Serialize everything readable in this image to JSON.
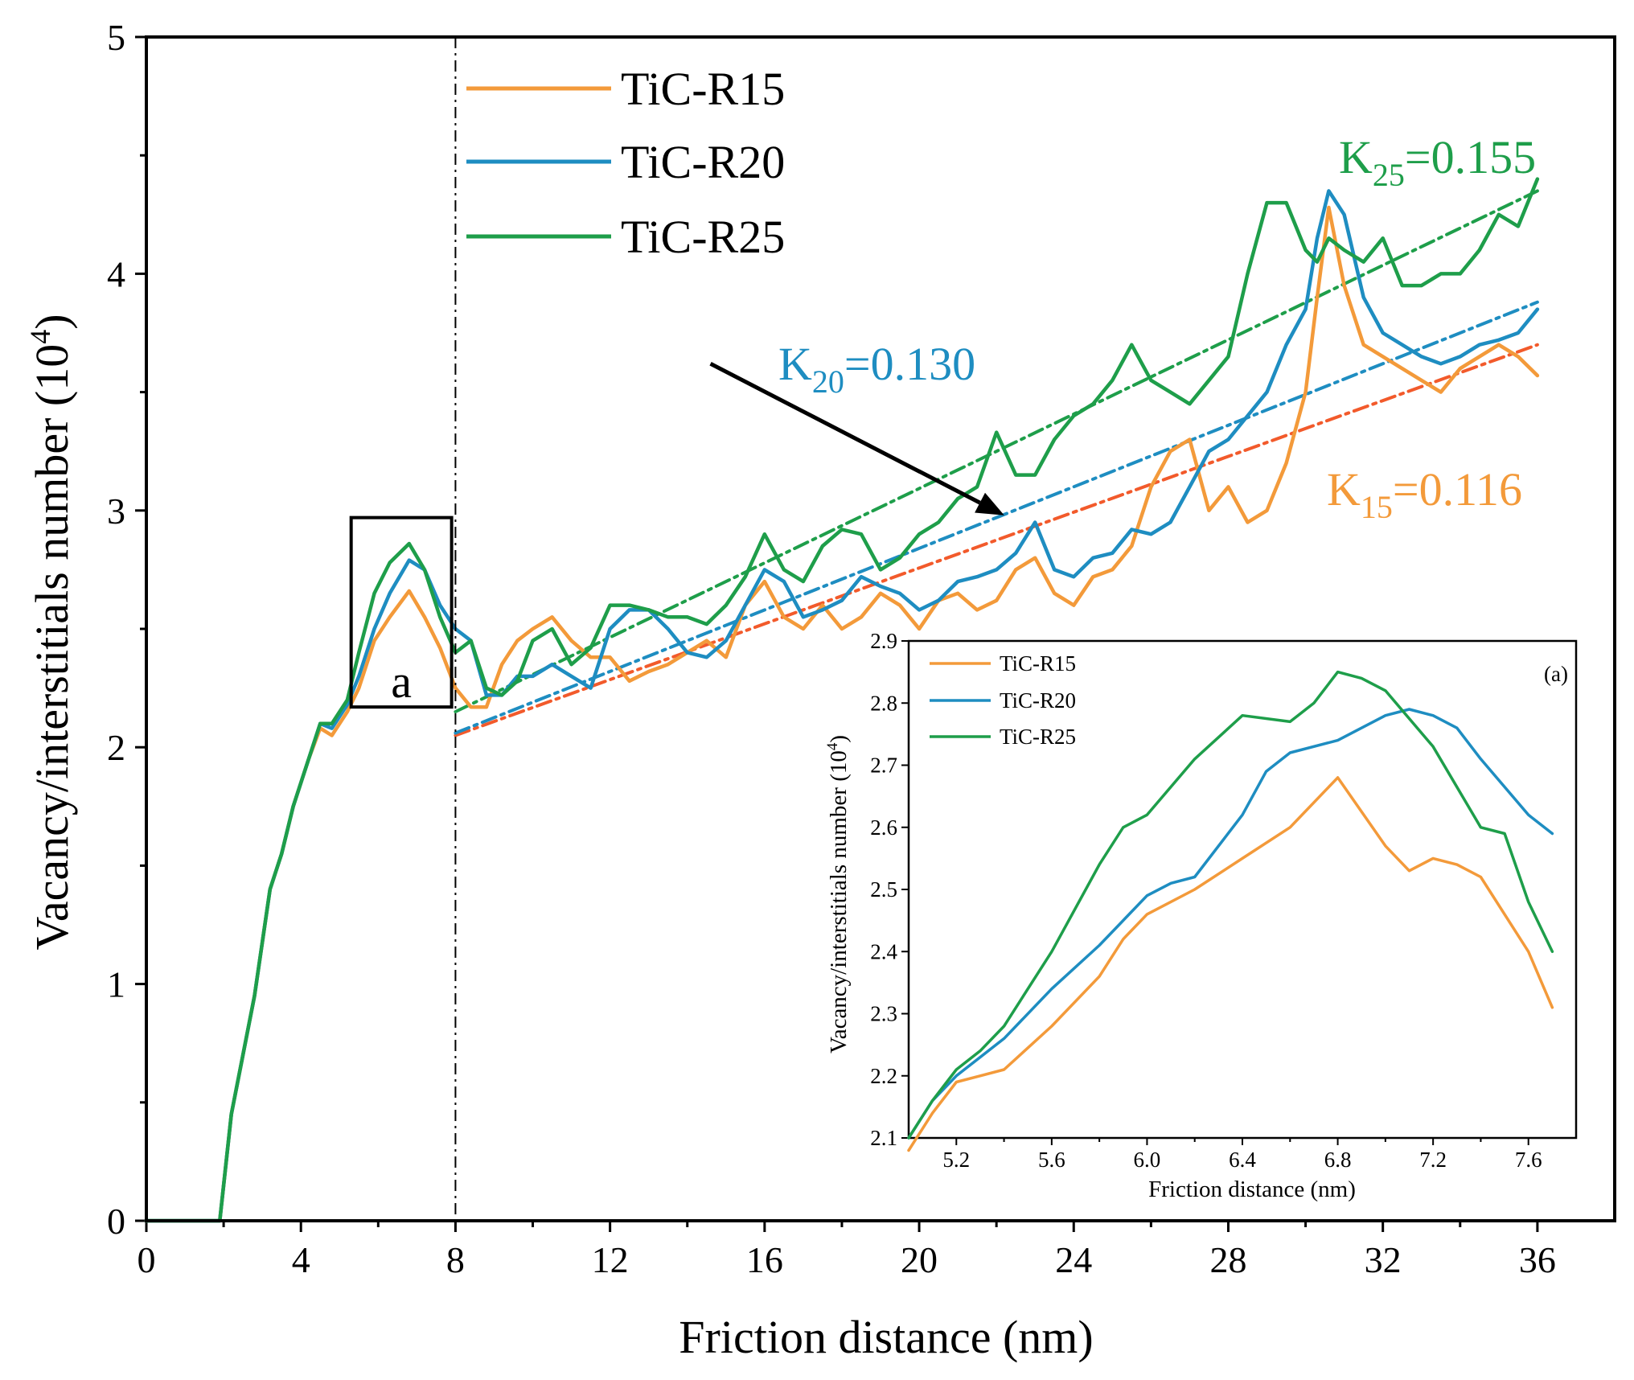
{
  "chart_data": [
    {
      "type": "line",
      "title": "",
      "xlabel": "Friction distance (nm)",
      "ylabel": "Vacancy/interstitials number (10",
      "ylabel_sup": "4",
      "ylabel_close": ")",
      "xlim": [
        0,
        38
      ],
      "ylim": [
        0,
        5
      ],
      "xticks": [
        0,
        4,
        8,
        12,
        16,
        20,
        24,
        28,
        32,
        36
      ],
      "yticks": [
        0,
        1,
        2,
        3,
        4,
        5
      ],
      "xtick_labels": [
        "0",
        "4",
        "8",
        "12",
        "16",
        "20",
        "24",
        "28",
        "32",
        "36"
      ],
      "ytick_labels": [
        "0",
        "1",
        "2",
        "3",
        "4",
        "5"
      ],
      "grid": false,
      "legend_position": "top-left",
      "divider_x": 8,
      "zoom_box": {
        "x": [
          5.3,
          7.9
        ],
        "y": [
          2.17,
          2.97
        ],
        "label": "a"
      },
      "series": [
        {
          "name": "TiC-R15",
          "color": "#F39A3A",
          "x": [
            0,
            1,
            1.9,
            2.2,
            2.5,
            2.8,
            3.2,
            3.5,
            3.8,
            4.2,
            4.5,
            4.8,
            5.2,
            5.5,
            5.9,
            6.3,
            6.8,
            7.2,
            7.6,
            8.0,
            8.4,
            8.8,
            9.2,
            9.6,
            10.0,
            10.5,
            11.0,
            11.5,
            12.0,
            12.5,
            13.0,
            13.5,
            14.0,
            14.5,
            15.0,
            15.5,
            16.0,
            16.5,
            17.0,
            17.5,
            18.0,
            18.5,
            19.0,
            19.5,
            20.0,
            20.5,
            21.0,
            21.5,
            22.0,
            22.5,
            23.0,
            23.5,
            24.0,
            24.5,
            25.0,
            25.5,
            26.0,
            26.5,
            27.0,
            27.5,
            28.0,
            28.5,
            29.0,
            29.5,
            30.0,
            30.3,
            30.6,
            31.0,
            31.5,
            32.0,
            32.5,
            33.0,
            33.5,
            34.0,
            34.5,
            35.0,
            35.5,
            36.0
          ],
          "y": [
            0,
            0,
            0,
            0.45,
            0.7,
            0.95,
            1.4,
            1.55,
            1.75,
            1.95,
            2.08,
            2.05,
            2.15,
            2.25,
            2.45,
            2.55,
            2.66,
            2.55,
            2.42,
            2.25,
            2.17,
            2.17,
            2.35,
            2.45,
            2.5,
            2.55,
            2.45,
            2.38,
            2.38,
            2.28,
            2.32,
            2.35,
            2.4,
            2.45,
            2.38,
            2.6,
            2.7,
            2.55,
            2.5,
            2.6,
            2.5,
            2.55,
            2.65,
            2.6,
            2.5,
            2.62,
            2.65,
            2.58,
            2.62,
            2.75,
            2.8,
            2.65,
            2.6,
            2.72,
            2.75,
            2.85,
            3.1,
            3.25,
            3.3,
            3.0,
            3.1,
            2.95,
            3.0,
            3.2,
            3.5,
            3.9,
            4.28,
            3.95,
            3.7,
            3.65,
            3.6,
            3.55,
            3.5,
            3.6,
            3.65,
            3.7,
            3.65,
            3.57
          ]
        },
        {
          "name": "TiC-R20",
          "color": "#1E8DC1",
          "x": [
            0,
            1,
            1.9,
            2.2,
            2.5,
            2.8,
            3.2,
            3.5,
            3.8,
            4.2,
            4.5,
            4.8,
            5.2,
            5.5,
            5.9,
            6.3,
            6.8,
            7.2,
            7.6,
            8.0,
            8.4,
            8.8,
            9.2,
            9.6,
            10.0,
            10.5,
            11.0,
            11.5,
            12.0,
            12.5,
            13.0,
            13.5,
            14.0,
            14.5,
            15.0,
            15.5,
            16.0,
            16.5,
            17.0,
            17.5,
            18.0,
            18.5,
            19.0,
            19.5,
            20.0,
            20.5,
            21.0,
            21.5,
            22.0,
            22.5,
            23.0,
            23.5,
            24.0,
            24.5,
            25.0,
            25.5,
            26.0,
            26.5,
            27.0,
            27.5,
            28.0,
            28.5,
            29.0,
            29.5,
            30.0,
            30.3,
            30.6,
            31.0,
            31.5,
            32.0,
            32.5,
            33.0,
            33.5,
            34.0,
            34.5,
            35.0,
            35.5,
            36.0
          ],
          "y": [
            0,
            0,
            0,
            0.45,
            0.7,
            0.95,
            1.4,
            1.55,
            1.75,
            1.95,
            2.1,
            2.08,
            2.18,
            2.3,
            2.5,
            2.65,
            2.79,
            2.75,
            2.6,
            2.5,
            2.45,
            2.22,
            2.22,
            2.3,
            2.3,
            2.35,
            2.3,
            2.25,
            2.5,
            2.58,
            2.58,
            2.5,
            2.4,
            2.38,
            2.45,
            2.6,
            2.75,
            2.7,
            2.55,
            2.58,
            2.62,
            2.72,
            2.68,
            2.65,
            2.58,
            2.62,
            2.7,
            2.72,
            2.75,
            2.82,
            2.95,
            2.75,
            2.72,
            2.8,
            2.82,
            2.92,
            2.9,
            2.95,
            3.1,
            3.25,
            3.3,
            3.4,
            3.5,
            3.7,
            3.85,
            4.15,
            4.35,
            4.25,
            3.9,
            3.75,
            3.7,
            3.65,
            3.62,
            3.65,
            3.7,
            3.72,
            3.75,
            3.85
          ]
        },
        {
          "name": "TiC-R25",
          "color": "#1E9E4A",
          "x": [
            0,
            1,
            1.9,
            2.2,
            2.5,
            2.8,
            3.2,
            3.5,
            3.8,
            4.2,
            4.5,
            4.8,
            5.2,
            5.5,
            5.9,
            6.3,
            6.8,
            7.2,
            7.6,
            8.0,
            8.4,
            8.8,
            9.2,
            9.6,
            10.0,
            10.5,
            11.0,
            11.5,
            12.0,
            12.5,
            13.0,
            13.5,
            14.0,
            14.5,
            15.0,
            15.5,
            16.0,
            16.5,
            17.0,
            17.5,
            18.0,
            18.5,
            19.0,
            19.5,
            20.0,
            20.5,
            21.0,
            21.5,
            22.0,
            22.5,
            23.0,
            23.5,
            24.0,
            24.5,
            25.0,
            25.5,
            26.0,
            26.5,
            27.0,
            27.5,
            28.0,
            28.5,
            29.0,
            29.5,
            30.0,
            30.3,
            30.6,
            31.0,
            31.5,
            32.0,
            32.5,
            33.0,
            33.5,
            34.0,
            34.5,
            35.0,
            35.5,
            36.0
          ],
          "y": [
            0,
            0,
            0,
            0.45,
            0.7,
            0.95,
            1.4,
            1.55,
            1.75,
            1.95,
            2.1,
            2.1,
            2.2,
            2.4,
            2.65,
            2.78,
            2.86,
            2.75,
            2.55,
            2.4,
            2.45,
            2.25,
            2.22,
            2.28,
            2.45,
            2.5,
            2.35,
            2.42,
            2.6,
            2.6,
            2.58,
            2.55,
            2.55,
            2.52,
            2.6,
            2.72,
            2.9,
            2.75,
            2.7,
            2.85,
            2.92,
            2.9,
            2.75,
            2.8,
            2.9,
            2.95,
            3.05,
            3.1,
            3.33,
            3.15,
            3.15,
            3.3,
            3.4,
            3.45,
            3.55,
            3.7,
            3.55,
            3.5,
            3.45,
            3.55,
            3.65,
            4.0,
            4.3,
            4.3,
            4.1,
            4.05,
            4.15,
            4.1,
            4.05,
            4.15,
            3.95,
            3.95,
            4.0,
            4.0,
            4.1,
            4.25,
            4.2,
            4.4
          ]
        }
      ],
      "fit_lines": [
        {
          "name": "K15 fit",
          "color": "#F25A2B",
          "x": [
            8,
            36
          ],
          "y": [
            2.05,
            3.7
          ]
        },
        {
          "name": "K20 fit",
          "color": "#1E8DC1",
          "x": [
            8,
            36
          ],
          "y": [
            2.06,
            3.88
          ]
        },
        {
          "name": "K25 fit",
          "color": "#1E9E4A",
          "x": [
            8,
            36
          ],
          "y": [
            2.15,
            4.35
          ]
        }
      ],
      "annotations": [
        {
          "main": "K",
          "sub": "25",
          "rest": "=0.155",
          "color": "#1E9E4A"
        },
        {
          "main": "K",
          "sub": "20",
          "rest": "=0.130",
          "color": "#1E8DC1"
        },
        {
          "main": "K",
          "sub": "15",
          "rest": "=0.116",
          "color": "#F39A3A"
        }
      ],
      "arrow": {
        "from": [
          14.6,
          3.62
        ],
        "to": [
          22.2,
          2.98
        ]
      }
    },
    {
      "type": "line",
      "inset_label": "(a)",
      "xlabel": "Friction distance (nm)",
      "ylabel": "Vacancy/interstitials number (10",
      "ylabel_sup": "4",
      "ylabel_close": ")",
      "xlim": [
        5.0,
        7.8
      ],
      "ylim": [
        2.1,
        2.9
      ],
      "xticks": [
        5.2,
        5.6,
        6.0,
        6.4,
        6.8,
        7.2,
        7.6
      ],
      "yticks": [
        2.1,
        2.2,
        2.3,
        2.4,
        2.5,
        2.6,
        2.7,
        2.8,
        2.9
      ],
      "xtick_labels": [
        "5.2",
        "5.6",
        "6.0",
        "6.4",
        "6.8",
        "7.2",
        "7.6"
      ],
      "ytick_labels": [
        "2.1",
        "2.2",
        "2.3",
        "2.4",
        "2.5",
        "2.6",
        "2.7",
        "2.8",
        "2.9"
      ],
      "grid": false,
      "legend_position": "top-left",
      "series": [
        {
          "name": "TiC-R15",
          "color": "#F39A3A",
          "x": [
            5.0,
            5.1,
            5.2,
            5.3,
            5.4,
            5.6,
            5.8,
            5.9,
            6.0,
            6.2,
            6.4,
            6.6,
            6.8,
            7.0,
            7.1,
            7.2,
            7.3,
            7.4,
            7.6,
            7.7
          ],
          "y": [
            2.08,
            2.14,
            2.19,
            2.2,
            2.21,
            2.28,
            2.36,
            2.42,
            2.46,
            2.5,
            2.55,
            2.6,
            2.68,
            2.57,
            2.53,
            2.55,
            2.54,
            2.52,
            2.4,
            2.31
          ]
        },
        {
          "name": "TiC-R20",
          "color": "#1E8DC1",
          "x": [
            5.0,
            5.1,
            5.2,
            5.3,
            5.4,
            5.6,
            5.8,
            6.0,
            6.1,
            6.2,
            6.4,
            6.5,
            6.6,
            6.8,
            7.0,
            7.1,
            7.2,
            7.3,
            7.4,
            7.6,
            7.7
          ],
          "y": [
            2.1,
            2.16,
            2.2,
            2.23,
            2.26,
            2.34,
            2.41,
            2.49,
            2.51,
            2.52,
            2.62,
            2.69,
            2.72,
            2.74,
            2.78,
            2.79,
            2.78,
            2.76,
            2.71,
            2.62,
            2.59
          ]
        },
        {
          "name": "TiC-R25",
          "color": "#1E9E4A",
          "x": [
            5.0,
            5.1,
            5.2,
            5.3,
            5.4,
            5.6,
            5.8,
            5.9,
            6.0,
            6.2,
            6.4,
            6.6,
            6.7,
            6.8,
            6.9,
            7.0,
            7.2,
            7.4,
            7.5,
            7.6,
            7.7
          ],
          "y": [
            2.1,
            2.16,
            2.21,
            2.24,
            2.28,
            2.4,
            2.54,
            2.6,
            2.62,
            2.71,
            2.78,
            2.77,
            2.8,
            2.85,
            2.84,
            2.82,
            2.73,
            2.6,
            2.59,
            2.48,
            2.4
          ]
        }
      ]
    }
  ]
}
